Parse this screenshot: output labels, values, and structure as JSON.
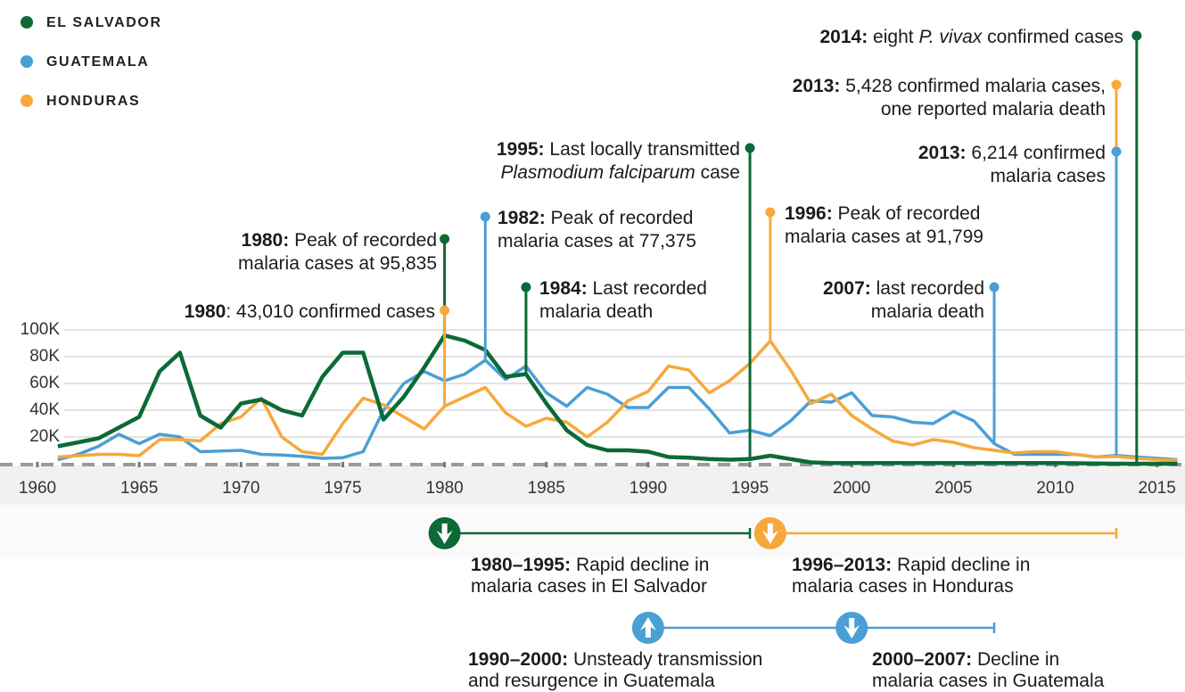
{
  "chart_data": {
    "type": "line",
    "x": [
      1961,
      1962,
      1963,
      1964,
      1965,
      1966,
      1967,
      1968,
      1969,
      1970,
      1971,
      1972,
      1973,
      1974,
      1975,
      1976,
      1977,
      1978,
      1979,
      1980,
      1981,
      1982,
      1983,
      1984,
      1985,
      1986,
      1987,
      1988,
      1989,
      1990,
      1991,
      1992,
      1993,
      1994,
      1995,
      1996,
      1997,
      1998,
      1999,
      2000,
      2001,
      2002,
      2003,
      2004,
      2005,
      2006,
      2007,
      2008,
      2009,
      2010,
      2011,
      2012,
      2013,
      2014,
      2015,
      2016
    ],
    "series": [
      {
        "name": "EL SALVADOR",
        "color": "#0b6a36",
        "values": [
          13000,
          16000,
          19000,
          27000,
          35000,
          69000,
          83000,
          36000,
          27000,
          45000,
          48000,
          40000,
          36000,
          65000,
          83000,
          83000,
          33000,
          50000,
          72000,
          95835,
          92000,
          85000,
          65000,
          67000,
          45000,
          25000,
          14000,
          10000,
          10000,
          9000,
          5000,
          4500,
          3500,
          3000,
          3500,
          6000,
          3500,
          1000,
          500,
          500,
          500,
          500,
          500,
          500,
          500,
          500,
          500,
          500,
          500,
          500,
          300,
          200,
          20,
          8,
          5,
          5
        ]
      },
      {
        "name": "GUATEMALA",
        "color": "#4a9fd5",
        "values": [
          3000,
          7000,
          13000,
          22000,
          15000,
          22000,
          20000,
          9000,
          9500,
          10000,
          7000,
          6500,
          5500,
          4000,
          4500,
          9000,
          40000,
          60000,
          69000,
          62000,
          67000,
          77375,
          63000,
          73000,
          53000,
          43000,
          57000,
          52000,
          42000,
          42000,
          57000,
          57000,
          41000,
          23000,
          25000,
          21000,
          32000,
          47000,
          46000,
          53000,
          36000,
          35000,
          31000,
          30000,
          39000,
          32000,
          15000,
          7000,
          7000,
          7000,
          7000,
          5000,
          6214,
          5000,
          4000,
          3000
        ]
      },
      {
        "name": "HONDURAS",
        "color": "#f7a83b",
        "values": [
          5000,
          6000,
          7000,
          7000,
          6000,
          18000,
          18000,
          17000,
          30000,
          35000,
          49000,
          20000,
          9000,
          7000,
          30000,
          49000,
          44000,
          35000,
          26000,
          43010,
          50000,
          57000,
          38000,
          28000,
          34000,
          31000,
          20000,
          31000,
          47000,
          54000,
          73000,
          70000,
          53000,
          62000,
          75000,
          91799,
          70000,
          45000,
          52000,
          36000,
          26000,
          17000,
          14000,
          18000,
          16000,
          12000,
          10000,
          8000,
          9000,
          9000,
          7000,
          5000,
          5428,
          4000,
          3000,
          2500
        ]
      }
    ],
    "xlim": [
      1960,
      2016.5
    ],
    "xticks": [
      1960,
      1965,
      1970,
      1975,
      1980,
      1985,
      1990,
      1995,
      2000,
      2005,
      2010,
      2015
    ],
    "ylim": [
      0,
      100000
    ],
    "yticks": [
      {
        "value": 20000,
        "label": "20K"
      },
      {
        "value": 40000,
        "label": "40K"
      },
      {
        "value": 60000,
        "label": "60K"
      },
      {
        "value": 80000,
        "label": "80K"
      },
      {
        "value": 100000,
        "label": "100K"
      }
    ],
    "grid": true,
    "legend": "top-left",
    "annotations": [
      {
        "year": 2014,
        "series": 0,
        "lines": [
          [
            {
              "t": "2014:",
              "b": true
            },
            {
              "t": " eight "
            },
            {
              "t": "P. vivax",
              "i": true
            },
            {
              "t": " confirmed cases"
            }
          ]
        ]
      },
      {
        "year": 2013,
        "series": 2,
        "lines": [
          [
            {
              "t": "2013:",
              "b": true
            },
            {
              "t": " 5,428 confirmed malaria cases,"
            }
          ],
          [
            {
              "t": "one reported malaria death"
            }
          ]
        ]
      },
      {
        "year": 2013,
        "series": 1,
        "lines": [
          [
            {
              "t": "2013:",
              "b": true
            },
            {
              "t": " 6,214 confirmed"
            }
          ],
          [
            {
              "t": "malaria cases"
            }
          ]
        ]
      },
      {
        "year": 1995,
        "series": 0,
        "lines": [
          [
            {
              "t": "1995:",
              "b": true
            },
            {
              "t": " Last locally transmitted"
            }
          ],
          [
            {
              "t": "Plasmodium falciparum",
              "i": true
            },
            {
              "t": " case"
            }
          ]
        ]
      },
      {
        "year": 1980,
        "series": 0,
        "lines": [
          [
            {
              "t": "1980:",
              "b": true
            },
            {
              "t": " Peak of recorded"
            }
          ],
          [
            {
              "t": "malaria cases at 95,835"
            }
          ]
        ]
      },
      {
        "year": 1982,
        "series": 1,
        "lines": [
          [
            {
              "t": "1982:",
              "b": true
            },
            {
              "t": " Peak of recorded"
            }
          ],
          [
            {
              "t": "malaria cases at 77,375"
            }
          ]
        ]
      },
      {
        "year": 1984,
        "series": 0,
        "lines": [
          [
            {
              "t": "1984:",
              "b": true
            },
            {
              "t": " Last recorded"
            }
          ],
          [
            {
              "t": "malaria death"
            }
          ]
        ]
      },
      {
        "year": 1980,
        "series": 2,
        "lines": [
          [
            {
              "t": "1980",
              "b": true
            },
            {
              "t": ": 43,010 confirmed cases"
            }
          ]
        ]
      },
      {
        "year": 1996,
        "series": 2,
        "lines": [
          [
            {
              "t": "1996:",
              "b": true
            },
            {
              "t": " Peak of recorded"
            }
          ],
          [
            {
              "t": "malaria cases at 91,799"
            }
          ]
        ]
      },
      {
        "year": 2007,
        "series": 1,
        "lines": [
          [
            {
              "t": "2007:",
              "b": true
            },
            {
              "t": " last recorded"
            }
          ],
          [
            {
              "t": "malaria death"
            }
          ]
        ]
      }
    ],
    "periods": [
      {
        "start": 1980,
        "end": 1995,
        "series": 0,
        "direction": "down",
        "lines": [
          [
            {
              "t": "1980–1995:",
              "b": true
            },
            {
              "t": " Rapid decline in"
            }
          ],
          [
            {
              "t": "malaria cases in El Salvador"
            }
          ]
        ]
      },
      {
        "start": 1996,
        "end": 2013,
        "series": 2,
        "direction": "down",
        "lines": [
          [
            {
              "t": "1996–2013:",
              "b": true
            },
            {
              "t": " Rapid decline in"
            }
          ],
          [
            {
              "t": "malaria cases in Honduras"
            }
          ]
        ]
      },
      {
        "start": 1990,
        "end": 2000,
        "series": 1,
        "direction": "up",
        "lines": [
          [
            {
              "t": "1990–2000:",
              "b": true
            },
            {
              "t": " Unsteady transmission"
            }
          ],
          [
            {
              "t": "and resurgence in Guatemala"
            }
          ]
        ]
      },
      {
        "start": 2000,
        "end": 2007,
        "series": 1,
        "direction": "down",
        "lines": [
          [
            {
              "t": "2000–2007:",
              "b": true
            },
            {
              "t": " Decline in"
            }
          ],
          [
            {
              "t": "malaria cases in Guatemala"
            }
          ]
        ]
      }
    ]
  }
}
